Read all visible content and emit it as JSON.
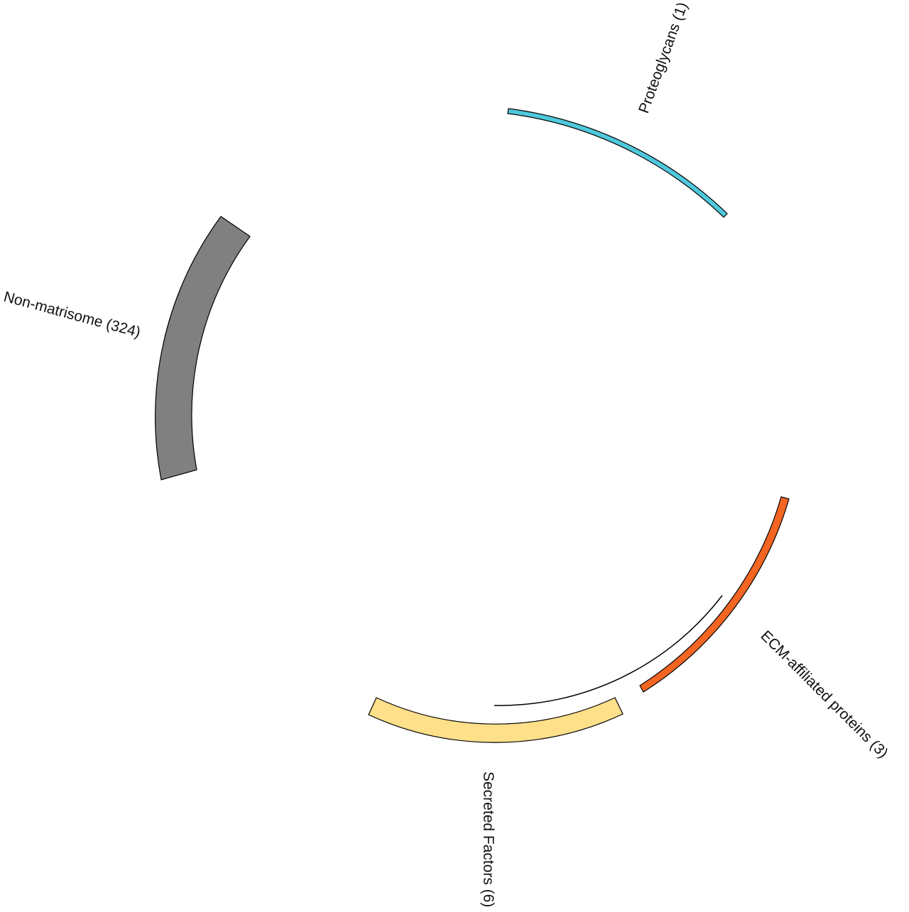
{
  "segments": [
    {
      "id": "proteoglycans",
      "label": "Proteoglycans (1)",
      "color": "#4fc8dc"
    },
    {
      "id": "non-matrisome",
      "label": "Non-matrisome (324)",
      "color": "#808080"
    },
    {
      "id": "ecm-affiliated",
      "label": "ECM-affiliated proteins (3)",
      "color": "#f26522"
    },
    {
      "id": "secreted-factors",
      "label": "Secreted Factors (6)",
      "color": "#ffe08a"
    }
  ],
  "link": {
    "color": "#000000"
  }
}
